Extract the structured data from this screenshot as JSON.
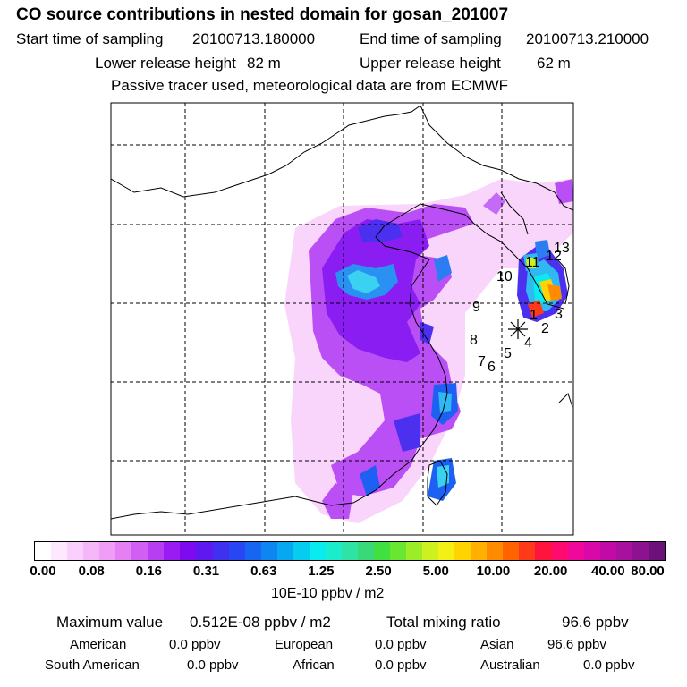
{
  "title": "CO  source contributions in nested domain for gosan_201007",
  "header": {
    "start_label": "Start time of sampling",
    "start_value": "20100713.180000",
    "end_label": "End time of sampling",
    "end_value": "20100713.210000",
    "lower_label": "Lower release height",
    "lower_value": "82 m",
    "upper_label": "Upper release height",
    "upper_value": "62 m",
    "note": "Passive tracer used, meteorological data are from ECMWF"
  },
  "map": {
    "release_labels": [
      "1",
      "2",
      "3",
      "4",
      "5",
      "6",
      "7",
      "8",
      "9",
      "10",
      "11",
      "12",
      "13"
    ],
    "receptor_icon": "asterisk-icon"
  },
  "colorbar": {
    "colors": [
      "#ffffff",
      "#fde8fd",
      "#f9d0fb",
      "#f4b8f8",
      "#ef9ef6",
      "#e47ff4",
      "#d25ff4",
      "#b83ef2",
      "#9b1cf2",
      "#7e0bf0",
      "#5f18f0",
      "#4030f0",
      "#2846f3",
      "#1766f2",
      "#0d86f2",
      "#07a8f2",
      "#06cdf0",
      "#08ecef",
      "#1aeccc",
      "#2ee3a3",
      "#39d878",
      "#40e040",
      "#6ae630",
      "#9cec28",
      "#ccf020",
      "#f3f016",
      "#ffd400",
      "#ffb000",
      "#ff8c00",
      "#ff6400",
      "#ff3a1a",
      "#ff1440",
      "#ff0a6e",
      "#f0089a",
      "#d908a8",
      "#c20aa6",
      "#a8109e",
      "#8c1290",
      "#6c107a"
    ],
    "ticks": [
      "0.00",
      "0.08",
      "0.16",
      "0.31",
      "0.63",
      "1.25",
      "2.50",
      "5.00",
      "10.00",
      "20.00",
      "40.00",
      "80.00"
    ],
    "unit": "10E-10 ppbv / m2"
  },
  "stats": {
    "max_label": "Maximum value",
    "max_value": "0.512E-08 ppbv / m2",
    "total_label": "Total mixing ratio",
    "total_value": "96.6 ppbv",
    "regions": [
      {
        "name": "American",
        "value": "0.0 ppbv"
      },
      {
        "name": "European",
        "value": "0.0 ppbv"
      },
      {
        "name": "Asian",
        "value": "96.6 ppbv"
      },
      {
        "name": "South American",
        "value": "0.0 ppbv"
      },
      {
        "name": "African",
        "value": "0.0 ppbv"
      },
      {
        "name": "Australian",
        "value": "0.0 ppbv"
      }
    ]
  }
}
